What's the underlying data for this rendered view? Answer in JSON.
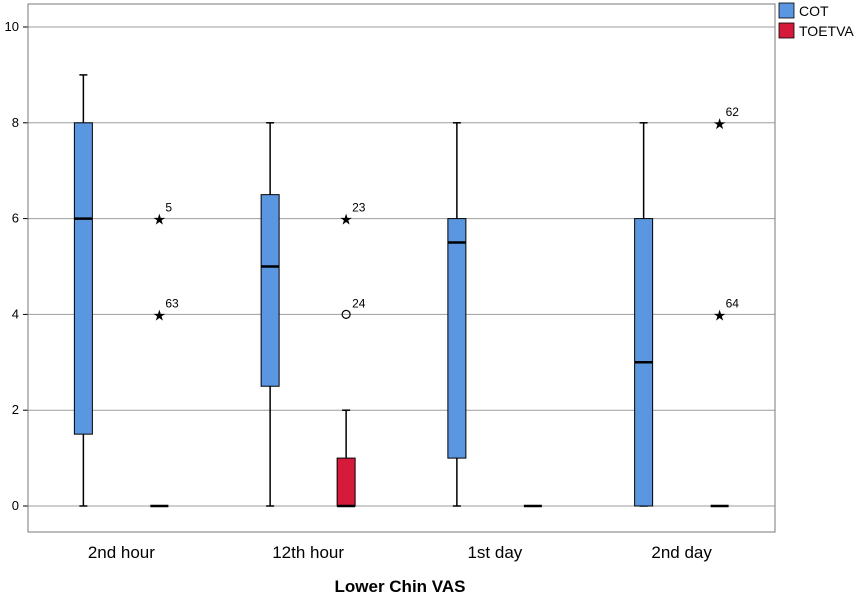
{
  "chart_data": {
    "type": "box",
    "xlabel": "Lower Chin VAS",
    "ylabel": "",
    "ylim": [
      0,
      10
    ],
    "yticks": [
      0,
      2,
      4,
      6,
      8,
      10
    ],
    "grid": true,
    "legend_position": "top-right",
    "categories": [
      "2nd hour",
      "12th hour",
      "1st day",
      "2nd day"
    ],
    "series": [
      {
        "name": "COT",
        "color": "#5b97e0",
        "boxes": [
          {
            "min": 0,
            "q1": 1.5,
            "median": 6,
            "q3": 8,
            "max": 9,
            "outliers": []
          },
          {
            "min": 0,
            "q1": 2.5,
            "median": 5,
            "q3": 6.5,
            "max": 8,
            "outliers": []
          },
          {
            "min": 0,
            "q1": 1,
            "median": 5.5,
            "q3": 6,
            "max": 8,
            "outliers": []
          },
          {
            "min": 0,
            "q1": 0,
            "median": 3,
            "q3": 6,
            "max": 8,
            "outliers": []
          }
        ]
      },
      {
        "name": "TOETVA",
        "color": "#d61a3c",
        "boxes": [
          {
            "min": 0,
            "q1": 0,
            "median": 0,
            "q3": 0,
            "max": 0,
            "outliers": [
              {
                "value": 6,
                "label": "5",
                "kind": "extreme"
              },
              {
                "value": 4,
                "label": "63",
                "kind": "extreme"
              }
            ]
          },
          {
            "min": 0,
            "q1": 0,
            "median": 0,
            "q3": 1,
            "max": 2,
            "outliers": [
              {
                "value": 6,
                "label": "23",
                "kind": "extreme"
              },
              {
                "value": 4,
                "label": "24",
                "kind": "outlier"
              }
            ]
          },
          {
            "min": 0,
            "q1": 0,
            "median": 0,
            "q3": 0,
            "max": 0,
            "outliers": []
          },
          {
            "min": 0,
            "q1": 0,
            "median": 0,
            "q3": 0,
            "max": 0,
            "outliers": [
              {
                "value": 8,
                "label": "62",
                "kind": "extreme"
              },
              {
                "value": 4,
                "label": "64",
                "kind": "extreme"
              }
            ]
          }
        ]
      }
    ]
  }
}
